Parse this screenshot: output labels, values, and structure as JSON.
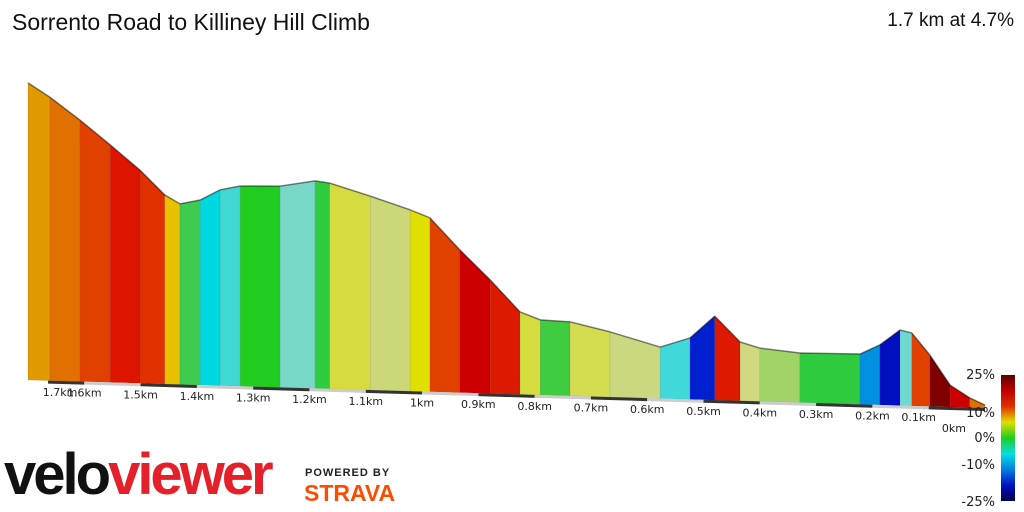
{
  "header": {
    "title": "Sorrento Road to Killiney Hill Climb",
    "summary": "1.7 km at 4.7%"
  },
  "branding": {
    "logo_part1": "velo",
    "logo_part2": "viewer",
    "powered_by": "POWERED BY",
    "strava": "STRAVA",
    "logo_color": "#e4202a",
    "strava_color": "#fc4c02"
  },
  "chart_data": {
    "type": "area",
    "title": "Sorrento Road to Killiney Hill Climb",
    "x_tick_labels": [
      "1.7km",
      "1.6km",
      "1.5km",
      "1.4km",
      "1.3km",
      "1.2km",
      "1.1km",
      "1km",
      "0.9km",
      "0.8km",
      "0.7km",
      "0.6km",
      "0.5km",
      "0.4km",
      "0.3km",
      "0.2km",
      "0.1km",
      "0km"
    ],
    "x_ticks_km": [
      1.7,
      1.6,
      1.5,
      1.4,
      1.3,
      1.2,
      1.1,
      1.0,
      0.9,
      0.8,
      0.7,
      0.6,
      0.5,
      0.4,
      0.3,
      0.2,
      0.1,
      0
    ],
    "xlim_km": [
      1.7,
      0
    ],
    "distance_km": [
      1.7,
      1.661,
      1.608,
      1.554,
      1.501,
      1.457,
      1.43,
      1.394,
      1.359,
      1.323,
      1.252,
      1.19,
      1.164,
      1.092,
      1.021,
      0.986,
      0.933,
      0.879,
      0.826,
      0.79,
      0.737,
      0.666,
      0.577,
      0.524,
      0.48,
      0.435,
      0.4,
      0.329,
      0.222,
      0.187,
      0.151,
      0.13,
      0.098,
      0.062,
      0.027,
      0
    ],
    "relative_elevation_m": [
      80.3,
      76.6,
      70.7,
      64.2,
      57.6,
      51.1,
      48.8,
      50.0,
      52.9,
      54.1,
      54.4,
      56.1,
      55.6,
      52.4,
      49.0,
      47.0,
      38.6,
      30.7,
      22.3,
      20.3,
      20.0,
      17.6,
      13.9,
      16.6,
      22.7,
      15.9,
      14.4,
      13.4,
      13.6,
      16.2,
      20.4,
      19.7,
      13.9,
      5.9,
      2.6,
      0.8
    ],
    "segment_colors": [
      "#e09a00",
      "#e07000",
      "#e04000",
      "#dd1500",
      "#e03000",
      "#e8c000",
      "#3dcc50",
      "#00d8e0",
      "#40d8d0",
      "#20cc20",
      "#78d8c8",
      "#30cc40",
      "#d4dc40",
      "#ccd878",
      "#e0e000",
      "#e04000",
      "#cc0000",
      "#dd1a00",
      "#d4dc40",
      "#40cc40",
      "#d4dc50",
      "#ccd880",
      "#40d8d8",
      "#0020d0",
      "#dd1a00",
      "#d0d880",
      "#a0d468",
      "#30cc40",
      "#0090e0",
      "#0010c0",
      "#70d8d0",
      "#e04000",
      "#800000",
      "#cc0000",
      "#e07000"
    ],
    "legend": {
      "labels": [
        "25%",
        "10%",
        "0%",
        "-10%",
        "-25%"
      ],
      "values": [
        25,
        10,
        0,
        -10,
        -25
      ],
      "colors": [
        "#5a0000",
        "#c00000",
        "#e03000",
        "#e0e000",
        "#20cc20",
        "#00e0e0",
        "#0080e0",
        "#0010c0",
        "#000050"
      ]
    }
  }
}
